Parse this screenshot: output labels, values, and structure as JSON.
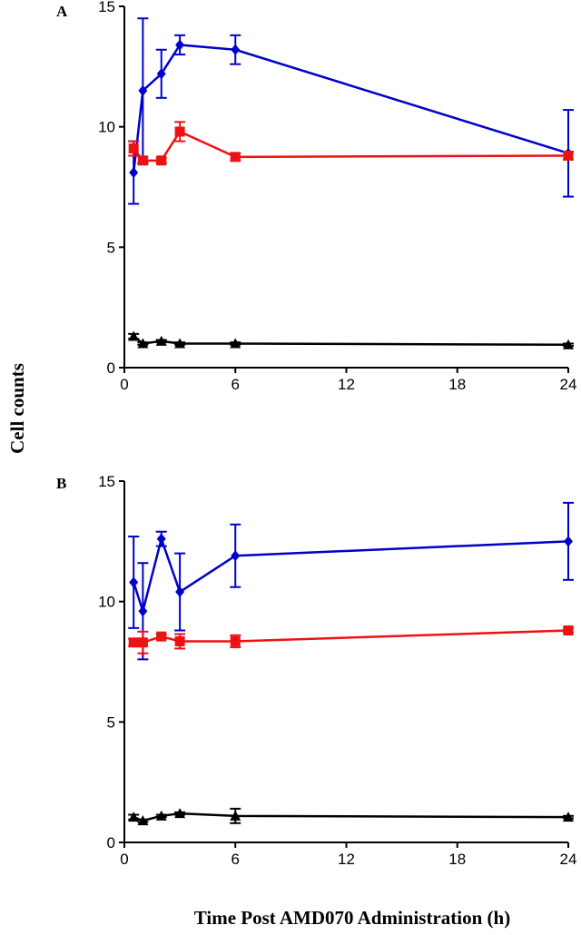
{
  "chart_data": [
    {
      "panel": "A",
      "type": "line",
      "xlabel": "Time Post AMD070 Administration (h)",
      "ylabel": "Cell counts",
      "xlim": [
        0,
        24
      ],
      "ylim": [
        0,
        15
      ],
      "xticks": [
        0,
        6,
        12,
        18,
        24
      ],
      "yticks": [
        0,
        5,
        10,
        15
      ],
      "grid": false,
      "series": [
        {
          "marker": "diamond",
          "color": "#0000cc",
          "x": [
            0.5,
            1,
            2,
            3,
            6,
            24
          ],
          "y": [
            8.1,
            11.5,
            12.2,
            13.4,
            13.2,
            8.9
          ],
          "err": [
            1.3,
            3.0,
            1.0,
            0.4,
            0.6,
            1.8
          ]
        },
        {
          "marker": "square",
          "color": "#ee1111",
          "x": [
            0.5,
            1,
            2,
            3,
            6,
            24
          ],
          "y": [
            9.1,
            8.6,
            8.6,
            9.8,
            8.75,
            8.8
          ],
          "err": [
            0.3,
            0.15,
            0.1,
            0.4,
            0.15,
            0.15
          ]
        },
        {
          "marker": "triangle",
          "color": "#000000",
          "x": [
            0.5,
            1,
            2,
            3,
            6,
            24
          ],
          "y": [
            1.3,
            1.0,
            1.1,
            1.0,
            1.0,
            0.95
          ],
          "err": [
            0.1,
            0.05,
            0.05,
            0.05,
            0.05,
            0.05
          ]
        }
      ]
    },
    {
      "panel": "B",
      "type": "line",
      "xlabel": "Time Post AMD070 Administration (h)",
      "ylabel": "Cell counts",
      "xlim": [
        0,
        24
      ],
      "ylim": [
        0,
        15
      ],
      "xticks": [
        0,
        6,
        12,
        18,
        24
      ],
      "yticks": [
        0,
        5,
        10,
        15
      ],
      "grid": false,
      "series": [
        {
          "marker": "diamond",
          "color": "#0000cc",
          "x": [
            0.5,
            1,
            2,
            3,
            6,
            24
          ],
          "y": [
            10.8,
            9.6,
            12.6,
            10.4,
            11.9,
            12.5
          ],
          "err": [
            1.9,
            2.0,
            0.3,
            1.6,
            1.3,
            1.6
          ]
        },
        {
          "marker": "square",
          "color": "#ee1111",
          "x": [
            0.5,
            1,
            2,
            3,
            6,
            24
          ],
          "y": [
            8.3,
            8.3,
            8.55,
            8.35,
            8.35,
            8.8
          ],
          "err": [
            0.15,
            0.45,
            0.1,
            0.3,
            0.25,
            0.1
          ]
        },
        {
          "marker": "triangle",
          "color": "#000000",
          "x": [
            0.5,
            1,
            2,
            3,
            6,
            24
          ],
          "y": [
            1.05,
            0.9,
            1.1,
            1.2,
            1.1,
            1.05
          ],
          "err": [
            0.1,
            0.05,
            0.05,
            0.05,
            0.3,
            0.05
          ]
        }
      ]
    }
  ]
}
